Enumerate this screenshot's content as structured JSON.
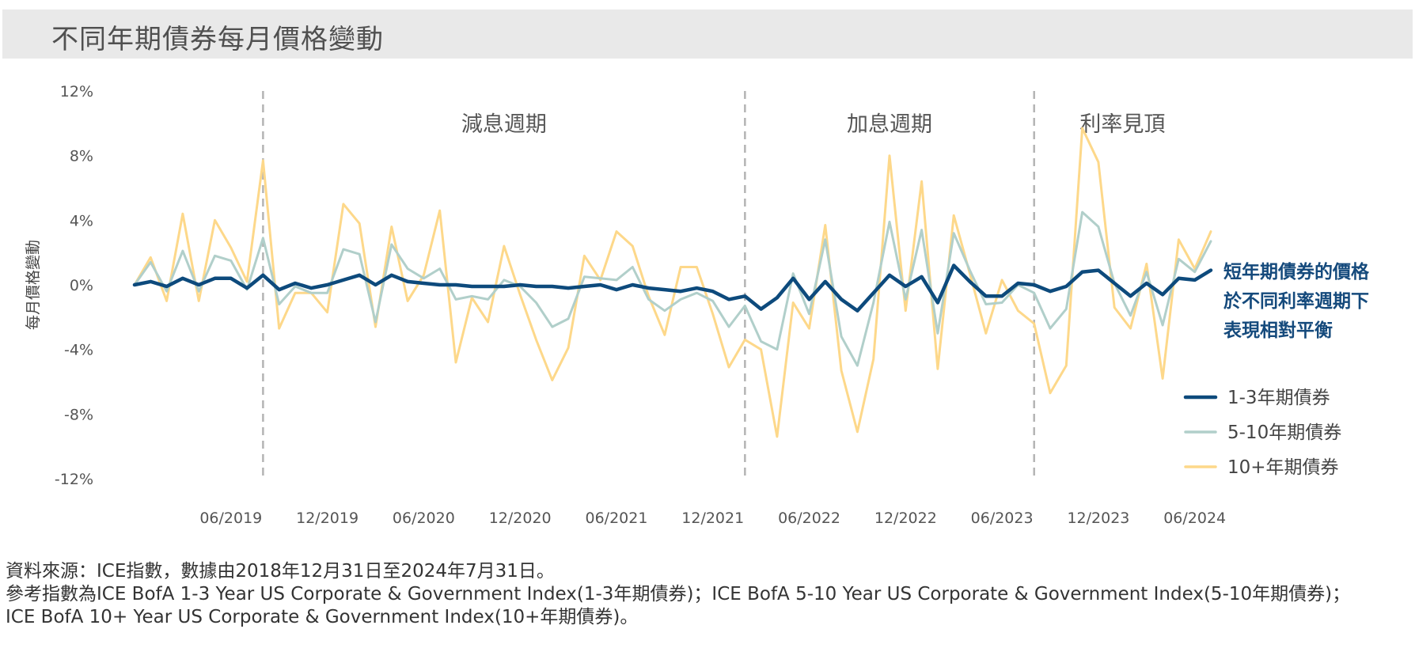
{
  "title": "不同年期債券每月價格變動",
  "chart_data": {
    "type": "line",
    "ylabel": "每月價格變動",
    "ylim": [
      -12,
      12
    ],
    "yticks": [
      12,
      8,
      4,
      0,
      -4,
      -8,
      -12
    ],
    "ytick_labels": [
      "12%",
      "8%",
      "4%",
      "0%",
      "-4%",
      "-8%",
      "-12%"
    ],
    "x_tick_labels": [
      "06/2019",
      "12/2019",
      "06/2020",
      "12/2020",
      "06/2021",
      "12/2021",
      "06/2022",
      "12/2022",
      "06/2023",
      "12/2023",
      "06/2024"
    ],
    "x_tick_month_index": [
      6,
      12,
      18,
      24,
      30,
      36,
      42,
      48,
      54,
      60,
      66
    ],
    "x_start": "12/2018",
    "x_end": "07/2024",
    "regions": [
      {
        "label": "減息週期",
        "start_index": 8,
        "end_index": 38
      },
      {
        "label": "加息週期",
        "start_index": 38,
        "end_index": 56
      },
      {
        "label": "利率見頂",
        "start_index": 56,
        "end_index": 67
      }
    ],
    "annotation": {
      "lines": [
        "短年期債券的價格",
        "於不同利率週期下",
        "表現相對平衡"
      ],
      "color": "#154a7c"
    },
    "legend_position": "right",
    "series": [
      {
        "name": "1-3年期債券",
        "color": "#0d4a7c",
        "values": [
          0,
          0.2,
          -0.1,
          0.4,
          0.0,
          0.4,
          0.4,
          -0.2,
          0.6,
          -0.3,
          0.1,
          -0.2,
          0.0,
          0.3,
          0.6,
          0.0,
          0.6,
          0.2,
          0.1,
          0.0,
          0.0,
          -0.1,
          -0.1,
          -0.1,
          0.0,
          -0.1,
          -0.1,
          -0.2,
          -0.1,
          0.0,
          -0.3,
          0.0,
          -0.2,
          -0.3,
          -0.4,
          -0.2,
          -0.4,
          -0.9,
          -0.7,
          -1.5,
          -0.8,
          0.4,
          -0.9,
          0.2,
          -0.9,
          -1.6,
          -0.5,
          0.6,
          -0.1,
          0.5,
          -1.1,
          1.2,
          0.2,
          -0.7,
          -0.7,
          0.1,
          0.0,
          -0.4,
          -0.1,
          0.8,
          0.9,
          0.1,
          -0.7,
          0.1,
          -0.6,
          0.4,
          0.3,
          0.9
        ]
      },
      {
        "name": "5-10年期債券",
        "color": "#b1cfca",
        "values": [
          0,
          1.4,
          -0.4,
          2.1,
          -0.4,
          1.8,
          1.5,
          -0.3,
          2.9,
          -1.2,
          -0.1,
          -0.5,
          -0.5,
          2.2,
          1.9,
          -2.3,
          2.5,
          1.0,
          0.4,
          1.0,
          -0.9,
          -0.7,
          -0.9,
          0.3,
          -0.1,
          -1.1,
          -2.6,
          -2.1,
          0.5,
          0.4,
          0.3,
          1.1,
          -0.9,
          -1.6,
          -0.9,
          -0.5,
          -1.0,
          -2.6,
          -1.3,
          -3.5,
          -4.0,
          0.7,
          -1.8,
          2.8,
          -3.2,
          -5.0,
          -1.1,
          3.9,
          -0.9,
          3.4,
          -3.0,
          3.2,
          0.9,
          -1.2,
          -1.1,
          0.0,
          -0.5,
          -2.7,
          -1.5,
          4.5,
          3.6,
          0.1,
          -1.9,
          0.8,
          -2.5,
          1.6,
          0.8,
          2.7
        ]
      },
      {
        "name": "10+年期債券",
        "color": "#fdd88a",
        "values": [
          0,
          1.7,
          -1.0,
          4.4,
          -1.0,
          4.0,
          2.3,
          0.2,
          7.7,
          -2.7,
          -0.5,
          -0.5,
          -1.7,
          5.0,
          3.8,
          -2.6,
          3.6,
          -1.0,
          0.6,
          4.6,
          -4.8,
          -0.8,
          -2.3,
          2.4,
          -0.6,
          -3.4,
          -5.9,
          -3.9,
          1.8,
          0.3,
          3.3,
          2.4,
          -0.7,
          -3.1,
          1.1,
          1.1,
          -1.8,
          -5.1,
          -3.4,
          -4.0,
          -9.4,
          -1.1,
          -2.7,
          3.7,
          -5.3,
          -9.1,
          -4.6,
          8.0,
          -1.6,
          6.4,
          -5.2,
          4.3,
          0.7,
          -3.0,
          0.3,
          -1.6,
          -2.4,
          -6.7,
          -5.0,
          9.7,
          7.6,
          -1.4,
          -2.7,
          1.3,
          -5.8,
          2.8,
          1.0,
          3.3
        ]
      }
    ]
  },
  "source": {
    "lines": [
      "資料來源：ICE指數，數據由2018年12月31日至2024年7月31日。",
      "參考指數為ICE BofA 1-3 Year US Corporate & Government Index(1-3年期債券)；ICE BofA 5-10 Year US Corporate & Government Index(5-10年期債券)；",
      "ICE BofA 10+ Year US Corporate & Government Index(10+年期債券)。"
    ]
  }
}
